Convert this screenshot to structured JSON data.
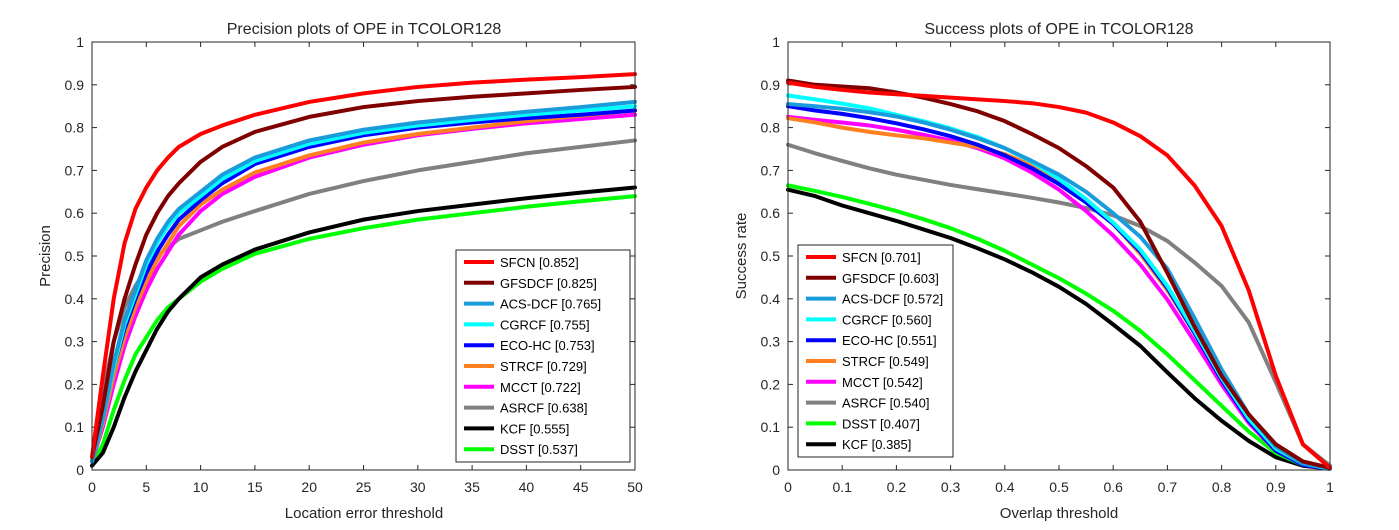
{
  "chart_data": [
    {
      "type": "line",
      "title": "Precision plots of OPE in TCOLOR128",
      "xlabel": "Location error threshold",
      "ylabel": "Precision",
      "xlim": [
        0,
        50
      ],
      "ylim": [
        0,
        1
      ],
      "xticks": [
        0,
        5,
        10,
        15,
        20,
        25,
        30,
        35,
        40,
        45,
        50
      ],
      "yticks": [
        0,
        0.1,
        0.2,
        0.3,
        0.4,
        0.5,
        0.6,
        0.7,
        0.8,
        0.9,
        1
      ],
      "legend_position": "bottom-right",
      "grid": false,
      "x": [
        0,
        1,
        2,
        3,
        4,
        5,
        6,
        7,
        8,
        10,
        12,
        15,
        20,
        25,
        30,
        35,
        40,
        45,
        50
      ],
      "series": [
        {
          "name": "SFCN [0.852]",
          "color": "#ff0000",
          "values": [
            0.03,
            0.22,
            0.4,
            0.53,
            0.61,
            0.66,
            0.7,
            0.73,
            0.755,
            0.785,
            0.805,
            0.83,
            0.86,
            0.88,
            0.895,
            0.905,
            0.912,
            0.918,
            0.925
          ]
        },
        {
          "name": "GFSDCF [0.825]",
          "color": "#800000",
          "values": [
            0.03,
            0.15,
            0.3,
            0.4,
            0.48,
            0.55,
            0.6,
            0.64,
            0.67,
            0.72,
            0.755,
            0.79,
            0.825,
            0.848,
            0.862,
            0.872,
            0.88,
            0.888,
            0.895
          ]
        },
        {
          "name": "ACS-DCF [0.765]",
          "color": "#1a9cdc",
          "values": [
            0.02,
            0.12,
            0.25,
            0.35,
            0.42,
            0.49,
            0.54,
            0.58,
            0.61,
            0.65,
            0.69,
            0.73,
            0.77,
            0.795,
            0.812,
            0.825,
            0.837,
            0.848,
            0.86
          ]
        },
        {
          "name": "CGRCF [0.755]",
          "color": "#00ffff",
          "values": [
            0.02,
            0.12,
            0.24,
            0.34,
            0.41,
            0.48,
            0.53,
            0.57,
            0.6,
            0.64,
            0.68,
            0.722,
            0.762,
            0.788,
            0.805,
            0.818,
            0.83,
            0.84,
            0.85
          ]
        },
        {
          "name": "ECO-HC [0.753]",
          "color": "#0000ff",
          "values": [
            0.02,
            0.12,
            0.24,
            0.33,
            0.4,
            0.46,
            0.51,
            0.55,
            0.585,
            0.63,
            0.67,
            0.715,
            0.755,
            0.782,
            0.8,
            0.812,
            0.822,
            0.83,
            0.84
          ]
        },
        {
          "name": "STRCF [0.729]",
          "color": "#ff8020",
          "values": [
            0.02,
            0.11,
            0.22,
            0.31,
            0.38,
            0.44,
            0.49,
            0.53,
            0.57,
            0.62,
            0.655,
            0.695,
            0.735,
            0.765,
            0.785,
            0.8,
            0.815,
            0.828,
            0.84
          ]
        },
        {
          "name": "MCCT [0.722]",
          "color": "#ff00ff",
          "values": [
            0.02,
            0.1,
            0.2,
            0.29,
            0.36,
            0.42,
            0.47,
            0.51,
            0.55,
            0.605,
            0.645,
            0.685,
            0.73,
            0.76,
            0.782,
            0.797,
            0.81,
            0.82,
            0.83
          ]
        },
        {
          "name": "ASRCF [0.638]",
          "color": "#808080",
          "values": [
            0.03,
            0.18,
            0.3,
            0.38,
            0.43,
            0.47,
            0.5,
            0.52,
            0.54,
            0.56,
            0.58,
            0.605,
            0.645,
            0.675,
            0.7,
            0.72,
            0.74,
            0.755,
            0.77
          ]
        },
        {
          "name": "KCF [0.555]",
          "color": "#000000",
          "values": [
            0.01,
            0.04,
            0.1,
            0.17,
            0.23,
            0.28,
            0.33,
            0.37,
            0.4,
            0.45,
            0.48,
            0.515,
            0.555,
            0.585,
            0.605,
            0.62,
            0.635,
            0.648,
            0.66
          ]
        },
        {
          "name": "DSST [0.537]",
          "color": "#00ff00",
          "values": [
            0.01,
            0.06,
            0.14,
            0.21,
            0.27,
            0.31,
            0.35,
            0.38,
            0.4,
            0.44,
            0.47,
            0.505,
            0.54,
            0.565,
            0.585,
            0.6,
            0.615,
            0.628,
            0.64
          ]
        }
      ]
    },
    {
      "type": "line",
      "title": "Success plots of OPE in TCOLOR128",
      "xlabel": "Overlap threshold",
      "ylabel": "Success rate",
      "xlim": [
        0,
        1
      ],
      "ylim": [
        0,
        1
      ],
      "xticks": [
        0,
        0.1,
        0.2,
        0.3,
        0.4,
        0.5,
        0.6,
        0.7,
        0.8,
        0.9,
        1
      ],
      "yticks": [
        0,
        0.1,
        0.2,
        0.3,
        0.4,
        0.5,
        0.6,
        0.7,
        0.8,
        0.9,
        1
      ],
      "legend_position": "bottom-left",
      "grid": false,
      "x": [
        0,
        0.05,
        0.1,
        0.15,
        0.2,
        0.25,
        0.3,
        0.35,
        0.4,
        0.45,
        0.5,
        0.55,
        0.6,
        0.65,
        0.7,
        0.75,
        0.8,
        0.85,
        0.9,
        0.95,
        1
      ],
      "series": [
        {
          "name": "SFCN [0.701]",
          "color": "#ff0000",
          "values": [
            0.905,
            0.895,
            0.888,
            0.882,
            0.878,
            0.874,
            0.87,
            0.866,
            0.862,
            0.857,
            0.848,
            0.835,
            0.812,
            0.78,
            0.735,
            0.665,
            0.57,
            0.42,
            0.22,
            0.06,
            0.005
          ]
        },
        {
          "name": "GFSDCF [0.603]",
          "color": "#800000",
          "values": [
            0.91,
            0.9,
            0.896,
            0.892,
            0.882,
            0.87,
            0.855,
            0.838,
            0.815,
            0.785,
            0.752,
            0.71,
            0.66,
            0.58,
            0.46,
            0.335,
            0.22,
            0.13,
            0.06,
            0.02,
            0.005
          ]
        },
        {
          "name": "ACS-DCF [0.572]",
          "color": "#1a9cdc",
          "values": [
            0.855,
            0.85,
            0.844,
            0.836,
            0.826,
            0.812,
            0.795,
            0.775,
            0.752,
            0.722,
            0.69,
            0.65,
            0.6,
            0.545,
            0.47,
            0.355,
            0.235,
            0.13,
            0.055,
            0.015,
            0.005
          ]
        },
        {
          "name": "CGRCF [0.560]",
          "color": "#00ffff",
          "values": [
            0.875,
            0.866,
            0.856,
            0.845,
            0.83,
            0.815,
            0.798,
            0.778,
            0.752,
            0.72,
            0.68,
            0.633,
            0.578,
            0.515,
            0.43,
            0.325,
            0.215,
            0.12,
            0.05,
            0.015,
            0.003
          ]
        },
        {
          "name": "ECO-HC [0.551]",
          "color": "#0000ff",
          "values": [
            0.85,
            0.84,
            0.832,
            0.822,
            0.81,
            0.796,
            0.78,
            0.76,
            0.735,
            0.705,
            0.668,
            0.625,
            0.575,
            0.51,
            0.425,
            0.32,
            0.21,
            0.115,
            0.045,
            0.012,
            0.003
          ]
        },
        {
          "name": "STRCF [0.549]",
          "color": "#ff8020",
          "values": [
            0.822,
            0.812,
            0.8,
            0.79,
            0.782,
            0.775,
            0.765,
            0.755,
            0.738,
            0.712,
            0.678,
            0.632,
            0.575,
            0.505,
            0.42,
            0.32,
            0.212,
            0.12,
            0.05,
            0.015,
            0.003
          ]
        },
        {
          "name": "MCCT [0.542]",
          "color": "#ff00ff",
          "values": [
            0.825,
            0.818,
            0.812,
            0.805,
            0.795,
            0.783,
            0.77,
            0.752,
            0.728,
            0.695,
            0.655,
            0.605,
            0.548,
            0.48,
            0.398,
            0.3,
            0.2,
            0.11,
            0.045,
            0.012,
            0.003
          ]
        },
        {
          "name": "ASRCF [0.540]",
          "color": "#808080",
          "values": [
            0.76,
            0.74,
            0.722,
            0.705,
            0.69,
            0.678,
            0.666,
            0.656,
            0.646,
            0.636,
            0.625,
            0.612,
            0.595,
            0.57,
            0.535,
            0.485,
            0.43,
            0.345,
            0.205,
            0.06,
            0.01
          ]
        },
        {
          "name": "DSST [0.407]",
          "color": "#00ff00",
          "values": [
            0.665,
            0.652,
            0.638,
            0.622,
            0.605,
            0.586,
            0.565,
            0.54,
            0.512,
            0.48,
            0.448,
            0.412,
            0.372,
            0.325,
            0.27,
            0.21,
            0.15,
            0.09,
            0.04,
            0.012,
            0.003
          ]
        },
        {
          "name": "KCF [0.385]",
          "color": "#000000",
          "values": [
            0.655,
            0.64,
            0.618,
            0.6,
            0.582,
            0.562,
            0.542,
            0.518,
            0.492,
            0.462,
            0.428,
            0.388,
            0.34,
            0.29,
            0.228,
            0.168,
            0.115,
            0.068,
            0.03,
            0.01,
            0.003
          ]
        }
      ]
    }
  ]
}
